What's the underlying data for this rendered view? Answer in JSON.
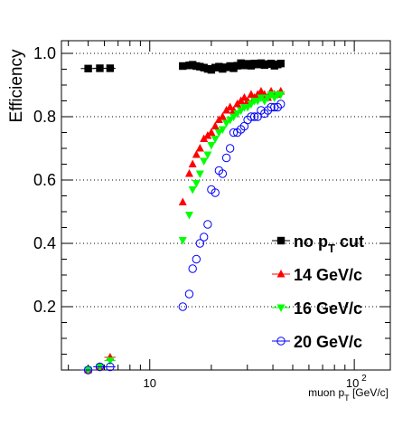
{
  "chart_data": {
    "type": "scatter",
    "xlabel": "muon p_T [GeV/c]",
    "ylabel": "Efficiency",
    "xscale": "log",
    "xlim": [
      3.7,
      150
    ],
    "ylim": [
      0,
      1.04
    ],
    "x_ticks": [
      10,
      100
    ],
    "x_tick_labels": [
      "10",
      "10^2"
    ],
    "y_ticks": [
      0.2,
      0.4,
      0.6,
      0.8,
      1.0
    ],
    "y_tick_labels": [
      "0.2",
      "0.4",
      "0.6",
      "0.8",
      "1.0"
    ],
    "grid": "horizontal dotted",
    "legend_position": "bottom-right",
    "series": [
      {
        "name": "no p_T cut",
        "marker": "square",
        "color": "#000000",
        "x": [
          5.0,
          5.7,
          6.4,
          14.5,
          15.6,
          16.2,
          16.9,
          17.6,
          18.4,
          19.2,
          20.0,
          20.9,
          21.8,
          22.7,
          23.7,
          24.7,
          25.7,
          26.8,
          27.9,
          29.0,
          30.1,
          31.3,
          32.5,
          33.7,
          35.0,
          36.4,
          37.8,
          39.2,
          40.7,
          42.2,
          43.7
        ],
        "y": [
          0.952,
          0.953,
          0.953,
          0.96,
          0.962,
          0.964,
          0.96,
          0.958,
          0.955,
          0.951,
          0.948,
          0.955,
          0.958,
          0.951,
          0.956,
          0.96,
          0.953,
          0.961,
          0.969,
          0.962,
          0.967,
          0.961,
          0.968,
          0.965,
          0.969,
          0.963,
          0.966,
          0.968,
          0.961,
          0.965,
          0.968
        ]
      },
      {
        "name": "14 GeV/c",
        "marker": "triangle-up",
        "color": "#ff0000",
        "x": [
          5.0,
          5.7,
          6.4,
          14.5,
          15.6,
          16.2,
          16.9,
          17.6,
          18.4,
          19.2,
          20.0,
          20.9,
          21.8,
          22.7,
          23.7,
          24.7,
          25.7,
          26.8,
          27.9,
          29.0,
          30.1,
          31.3,
          32.5,
          33.7,
          35.0,
          36.4,
          37.8,
          39.2,
          40.7,
          42.2,
          43.7
        ],
        "y": [
          0.0,
          0.01,
          0.04,
          0.53,
          0.62,
          0.65,
          0.68,
          0.7,
          0.73,
          0.74,
          0.75,
          0.77,
          0.79,
          0.8,
          0.82,
          0.83,
          0.82,
          0.84,
          0.85,
          0.86,
          0.85,
          0.87,
          0.86,
          0.87,
          0.88,
          0.87,
          0.86,
          0.88,
          0.87,
          0.87,
          0.88
        ]
      },
      {
        "name": "16 GeV/c",
        "marker": "triangle-down",
        "color": "#00ff00",
        "x": [
          5.0,
          5.7,
          6.4,
          14.5,
          15.6,
          16.2,
          16.9,
          17.6,
          18.4,
          19.2,
          20.0,
          20.9,
          21.8,
          22.7,
          23.7,
          24.7,
          25.7,
          26.8,
          27.9,
          29.0,
          30.1,
          31.3,
          32.5,
          33.7,
          35.0,
          36.4,
          37.8,
          39.2,
          40.7,
          42.2,
          43.7
        ],
        "y": [
          0.0,
          0.01,
          0.03,
          0.41,
          0.49,
          0.57,
          0.59,
          0.62,
          0.66,
          0.68,
          0.71,
          0.73,
          0.75,
          0.76,
          0.78,
          0.79,
          0.8,
          0.81,
          0.82,
          0.83,
          0.83,
          0.84,
          0.85,
          0.85,
          0.86,
          0.85,
          0.86,
          0.87,
          0.86,
          0.87,
          0.87
        ]
      },
      {
        "name": "20 GeV/c",
        "marker": "circle-open",
        "color": "#0000ff",
        "x": [
          5.0,
          5.7,
          6.4,
          14.5,
          15.6,
          16.2,
          16.9,
          17.6,
          18.4,
          19.2,
          20.0,
          20.9,
          21.8,
          22.7,
          23.7,
          24.7,
          25.7,
          26.8,
          27.9,
          29.0,
          30.1,
          31.3,
          32.5,
          33.7,
          35.0,
          36.4,
          37.8,
          39.2,
          40.7,
          42.2,
          43.7
        ],
        "y": [
          0.0,
          0.01,
          0.01,
          0.2,
          0.24,
          0.32,
          0.35,
          0.4,
          0.42,
          0.46,
          0.57,
          0.56,
          0.63,
          0.62,
          0.67,
          0.7,
          0.75,
          0.75,
          0.76,
          0.77,
          0.79,
          0.8,
          0.8,
          0.8,
          0.82,
          0.81,
          0.82,
          0.83,
          0.83,
          0.83,
          0.84
        ]
      }
    ]
  }
}
